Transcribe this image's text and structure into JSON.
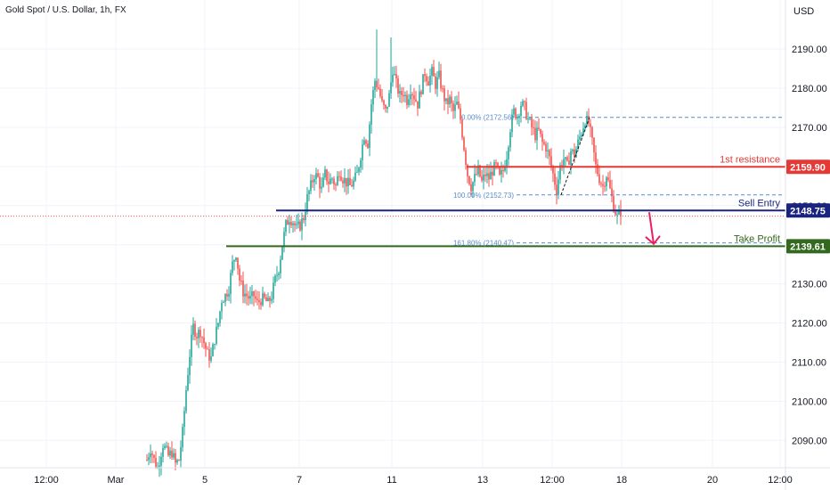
{
  "header": {
    "symbol_title": "Gold Spot / U.S. Dollar, 1h, FX",
    "currency": "USD"
  },
  "colors": {
    "up": "#26a69a",
    "down": "#ef5350",
    "resistance": "#e53935",
    "entry": "#1a237e",
    "profit": "#33691e",
    "fib": "#5b8bc9",
    "arrow": "#e91e63",
    "grid": "#f0f3fa",
    "axis_text": "#131722"
  },
  "chart_data": {
    "type": "candlestick",
    "ylim": [
      2083,
      2198
    ],
    "y_ticks": [
      2090,
      2100,
      2110,
      2120,
      2130,
      2140,
      2150,
      2160,
      2170,
      2180,
      2190
    ],
    "x_ticks": [
      {
        "label": "12:00",
        "slot": 26
      },
      {
        "label": "Mar",
        "slot": 65
      },
      {
        "label": "5",
        "slot": 115
      },
      {
        "label": "7",
        "slot": 168
      },
      {
        "label": "11",
        "slot": 220
      },
      {
        "label": "13",
        "slot": 271
      },
      {
        "label": "12:00",
        "slot": 310
      },
      {
        "label": "18",
        "slot": 349
      },
      {
        "label": "20",
        "slot": 400
      },
      {
        "label": "12:00",
        "slot": 438
      }
    ],
    "candle_points": [
      [
        82,
        2085
      ],
      [
        84,
        2088
      ],
      [
        86,
        2085
      ],
      [
        88,
        2083
      ],
      [
        91,
        2089
      ],
      [
        94,
        2086
      ],
      [
        96,
        2087
      ],
      [
        98,
        2084
      ],
      [
        100,
        2085
      ],
      [
        102,
        2092
      ],
      [
        104,
        2103
      ],
      [
        106,
        2112
      ],
      [
        108,
        2119
      ],
      [
        110,
        2117
      ],
      [
        112,
        2118
      ],
      [
        114,
        2115
      ],
      [
        116,
        2112
      ],
      [
        118,
        2111
      ],
      [
        120,
        2116
      ],
      [
        122,
        2120
      ],
      [
        124,
        2126
      ],
      [
        126,
        2127
      ],
      [
        128,
        2129
      ],
      [
        130,
        2135
      ],
      [
        132,
        2138
      ],
      [
        134,
        2131
      ],
      [
        136,
        2128
      ],
      [
        138,
        2127
      ],
      [
        140,
        2126
      ],
      [
        142,
        2127
      ],
      [
        144,
        2125
      ],
      [
        146,
        2126
      ],
      [
        148,
        2126
      ],
      [
        150,
        2125
      ],
      [
        152,
        2127
      ],
      [
        154,
        2131
      ],
      [
        156,
        2134
      ],
      [
        158,
        2140
      ],
      [
        160,
        2145
      ],
      [
        162,
        2147
      ],
      [
        164,
        2146
      ],
      [
        166,
        2144
      ],
      [
        168,
        2145
      ],
      [
        170,
        2147
      ],
      [
        172,
        2152
      ],
      [
        174,
        2155
      ],
      [
        176,
        2158
      ],
      [
        178,
        2157
      ],
      [
        180,
        2154
      ],
      [
        182,
        2158
      ],
      [
        184,
        2156
      ],
      [
        186,
        2157
      ],
      [
        188,
        2155
      ],
      [
        190,
        2159
      ],
      [
        192,
        2157
      ],
      [
        194,
        2156
      ],
      [
        196,
        2155
      ],
      [
        198,
        2156
      ],
      [
        200,
        2158
      ],
      [
        202,
        2163
      ],
      [
        204,
        2168
      ],
      [
        206,
        2166
      ],
      [
        208,
        2176
      ],
      [
        210,
        2182
      ],
      [
        212,
        2180
      ],
      [
        214,
        2176
      ],
      [
        216,
        2174
      ],
      [
        218,
        2178
      ],
      [
        220,
        2185
      ],
      [
        222,
        2181
      ],
      [
        224,
        2178
      ],
      [
        226,
        2179
      ],
      [
        228,
        2177
      ],
      [
        230,
        2180
      ],
      [
        232,
        2178
      ],
      [
        234,
        2176
      ],
      [
        236,
        2180
      ],
      [
        238,
        2184
      ],
      [
        240,
        2182
      ],
      [
        242,
        2184
      ],
      [
        244,
        2181
      ],
      [
        246,
        2183
      ],
      [
        248,
        2179
      ],
      [
        250,
        2176
      ],
      [
        252,
        2177
      ],
      [
        254,
        2174
      ],
      [
        256,
        2176
      ],
      [
        258,
        2172
      ],
      [
        260,
        2165
      ],
      [
        262,
        2158
      ],
      [
        264,
        2155
      ],
      [
        266,
        2157
      ],
      [
        268,
        2159
      ],
      [
        270,
        2156
      ],
      [
        272,
        2158
      ],
      [
        274,
        2157
      ],
      [
        276,
        2159
      ],
      [
        278,
        2160
      ],
      [
        280,
        2157
      ],
      [
        282,
        2159
      ],
      [
        284,
        2163
      ],
      [
        286,
        2170
      ],
      [
        288,
        2174
      ],
      [
        290,
        2173
      ],
      [
        292,
        2176
      ],
      [
        294,
        2175
      ],
      [
        296,
        2172
      ],
      [
        298,
        2170
      ],
      [
        300,
        2168
      ],
      [
        302,
        2169
      ],
      [
        304,
        2166
      ],
      [
        306,
        2165
      ],
      [
        308,
        2162
      ],
      [
        310,
        2158
      ],
      [
        312,
        2154
      ],
      [
        314,
        2160
      ],
      [
        316,
        2162
      ],
      [
        318,
        2160
      ],
      [
        320,
        2164
      ],
      [
        322,
        2163
      ],
      [
        324,
        2166
      ],
      [
        326,
        2169
      ],
      [
        328,
        2172
      ],
      [
        330,
        2171
      ],
      [
        332,
        2166
      ],
      [
        334,
        2160
      ],
      [
        336,
        2157
      ],
      [
        338,
        2155
      ],
      [
        340,
        2158
      ],
      [
        342,
        2154
      ],
      [
        344,
        2150
      ],
      [
        346,
        2147
      ],
      [
        348,
        2148.6
      ]
    ],
    "levels": [
      {
        "label": "1st resistance",
        "price_label": "2159.90",
        "value": 2159.9,
        "from_slot": 262,
        "color_key": "resistance"
      },
      {
        "label": "Sell Entry",
        "price_label": "2148.75",
        "value": 2148.75,
        "from_slot": 155,
        "color_key": "entry"
      },
      {
        "label": "Take Profit",
        "price_label": "2139.61",
        "value": 2139.61,
        "from_slot": 127,
        "color_key": "profit"
      }
    ],
    "fib_levels": [
      {
        "label": "0.00% (2172.56)",
        "value": 2172.56
      },
      {
        "label": "100.00% (2152.73)",
        "value": 2152.73
      },
      {
        "label": "161.80% (2140.47)",
        "value": 2140.47
      }
    ],
    "fib_from_slot": 290,
    "fib_to_slot": 440,
    "last_price": 2147.3,
    "arrow": {
      "from_slot": 366,
      "from_value": 2148.3,
      "to_slot": 366,
      "to_value": 2140.2
    }
  }
}
